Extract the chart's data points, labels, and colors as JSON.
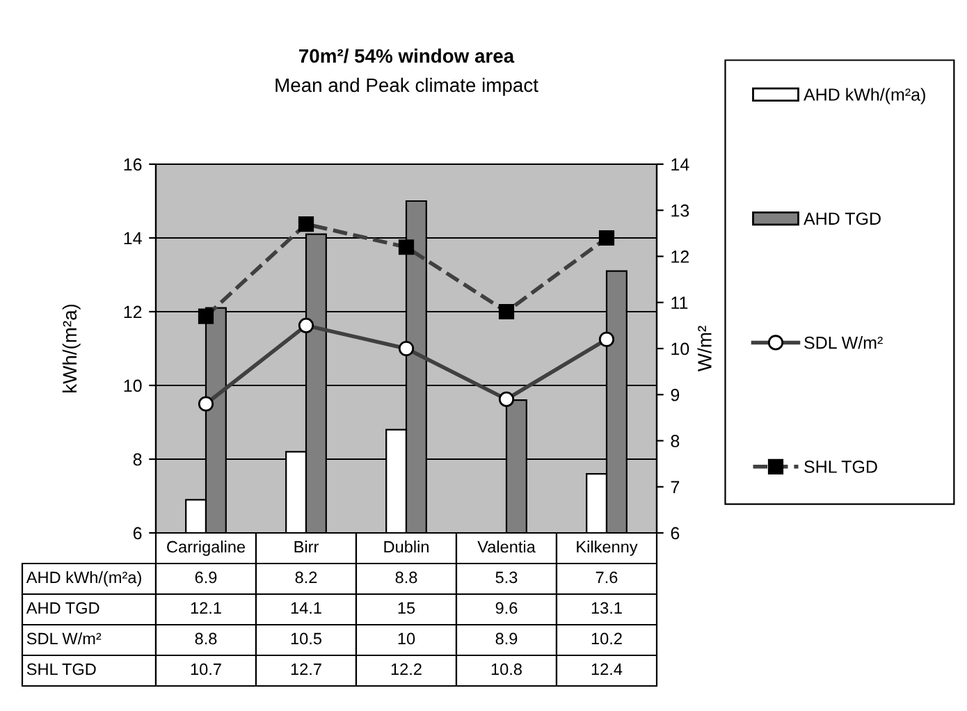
{
  "chart_data": {
    "type": "bar",
    "title": "70m²/ 54% window area",
    "subtitle": "Mean and Peak climate impact",
    "ylabel": "kWh/(m²a)",
    "y2label": "W/m²",
    "categories": [
      "Carrigaline",
      "Birr",
      "Dublin",
      "Valentia",
      "Kilkenny"
    ],
    "series": [
      {
        "name": "AHD kWh/(m²a)",
        "color": "#ffffff",
        "values": [
          6.9,
          8.2,
          8.8,
          null,
          7.6
        ],
        "value_labels": [
          "6.9",
          "8.2",
          "8.8",
          "5.3",
          "7.6"
        ]
      },
      {
        "name": "AHD TGD",
        "color": "#808080",
        "values": [
          12.1,
          14.1,
          15,
          9.6,
          13.1
        ],
        "value_labels": [
          "12.1",
          "14.1",
          "15",
          "9.6",
          "13.1"
        ]
      },
      {
        "name": "SDL W/m²",
        "type": "line",
        "axis": "y2",
        "color": "#404040",
        "marker": "circle",
        "line_style": "solid",
        "values": [
          8.8,
          10.5,
          10,
          8.9,
          10.2
        ],
        "value_labels": [
          "8.8",
          "10.5",
          "10",
          "8.9",
          "10.2"
        ]
      },
      {
        "name": "SHL TGD",
        "type": "line",
        "axis": "y2",
        "color": "#404040",
        "marker": "square",
        "line_style": "dashed",
        "values": [
          10.7,
          12.7,
          12.2,
          10.8,
          12.4
        ],
        "value_labels": [
          "10.7",
          "12.7",
          "12.2",
          "10.8",
          "12.4"
        ]
      }
    ],
    "ylim": [
      6,
      16
    ],
    "yticks": [
      6,
      8,
      10,
      12,
      14,
      16
    ],
    "y2lim": [
      6,
      14
    ],
    "y2ticks": [
      6,
      7,
      8,
      9,
      10,
      11,
      12,
      13,
      14
    ],
    "grid": "y",
    "legend": "right"
  }
}
